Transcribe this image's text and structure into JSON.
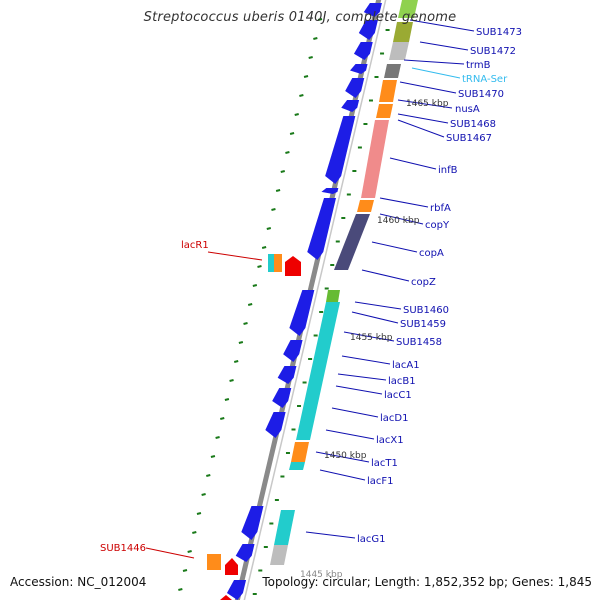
{
  "title": "Streptococcus uberis 0140J, complete genome",
  "accession": "Accession: NC_012004",
  "topology": "Topology: circular; Length: 1,852,352 bp; Genes: 1,845",
  "colors": {
    "gene_label": "#1010b0",
    "rna_label": "#33bbee",
    "highlight_label": "#cc0000",
    "forward_arrow": "#1d1de6",
    "tick_green": "#1a7a1a"
  },
  "kbp_labels": [
    "1465 kbp",
    "1460 kbp",
    "1455 kbp",
    "1450 kbp",
    "1445 kbp"
  ],
  "gene_labels": [
    {
      "text": "SUB1473",
      "kind": "gene"
    },
    {
      "text": "SUB1472",
      "kind": "gene"
    },
    {
      "text": "trmB",
      "kind": "gene"
    },
    {
      "text": "tRNA-Ser",
      "kind": "rna"
    },
    {
      "text": "SUB1470",
      "kind": "gene"
    },
    {
      "text": "nusA",
      "kind": "gene"
    },
    {
      "text": "SUB1468",
      "kind": "gene"
    },
    {
      "text": "SUB1467",
      "kind": "gene"
    },
    {
      "text": "infB",
      "kind": "gene"
    },
    {
      "text": "rbfA",
      "kind": "gene"
    },
    {
      "text": "copY",
      "kind": "gene"
    },
    {
      "text": "copA",
      "kind": "gene"
    },
    {
      "text": "copZ",
      "kind": "gene"
    },
    {
      "text": "SUB1460",
      "kind": "gene"
    },
    {
      "text": "SUB1459",
      "kind": "gene"
    },
    {
      "text": "SUB1458",
      "kind": "gene"
    },
    {
      "text": "lacA1",
      "kind": "gene"
    },
    {
      "text": "lacB1",
      "kind": "gene"
    },
    {
      "text": "lacC1",
      "kind": "gene"
    },
    {
      "text": "lacD1",
      "kind": "gene"
    },
    {
      "text": "lacX1",
      "kind": "gene"
    },
    {
      "text": "lacT1",
      "kind": "gene"
    },
    {
      "text": "lacF1",
      "kind": "gene"
    },
    {
      "text": "lacG1",
      "kind": "gene"
    }
  ],
  "left_labels": [
    {
      "text": "lacR1",
      "kind": "highlight"
    },
    {
      "text": "SUB1446",
      "kind": "highlight"
    }
  ]
}
